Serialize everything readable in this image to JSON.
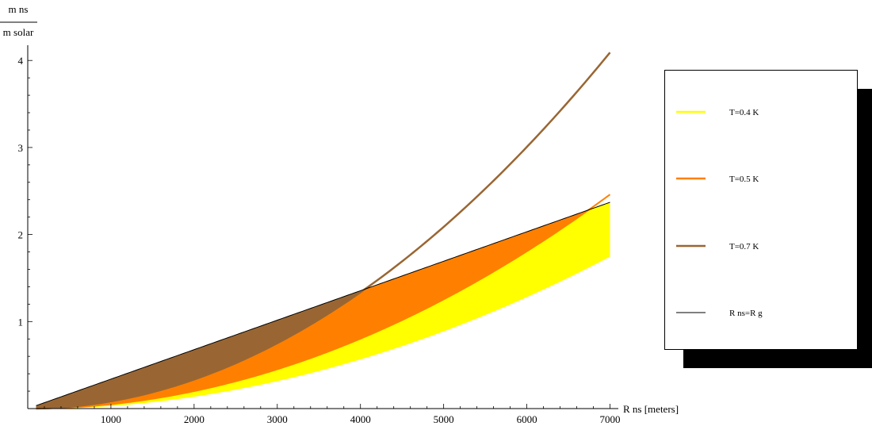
{
  "chart_data": {
    "type": "area",
    "title": "",
    "xlabel": "R ns [meters]",
    "ylabel_numerator": "m ns",
    "ylabel_denominator": "m solar",
    "xlim": [
      0,
      7100
    ],
    "ylim": [
      0,
      4.15
    ],
    "x_ticks": [
      1000,
      2000,
      3000,
      4000,
      5000,
      6000,
      7000
    ],
    "y_ticks": [
      1,
      2,
      3,
      4
    ],
    "x_range": [
      100,
      7000
    ],
    "series": [
      {
        "name": "T=0.4 K",
        "color": "#ffff00",
        "coef": 3.578e-08,
        "exponent": 2
      },
      {
        "name": "T=0.5 K",
        "color": "#ff8000",
        "coef": 5.02e-08,
        "exponent": 2
      },
      {
        "name": "T=0.7 K",
        "color": "#996633",
        "coef": 8.35e-08,
        "exponent": 2
      },
      {
        "name": "R ns=R g",
        "color": "#000000",
        "coef": 0.0003386,
        "exponent": 1
      }
    ],
    "legend_position": "right",
    "grid": false
  }
}
